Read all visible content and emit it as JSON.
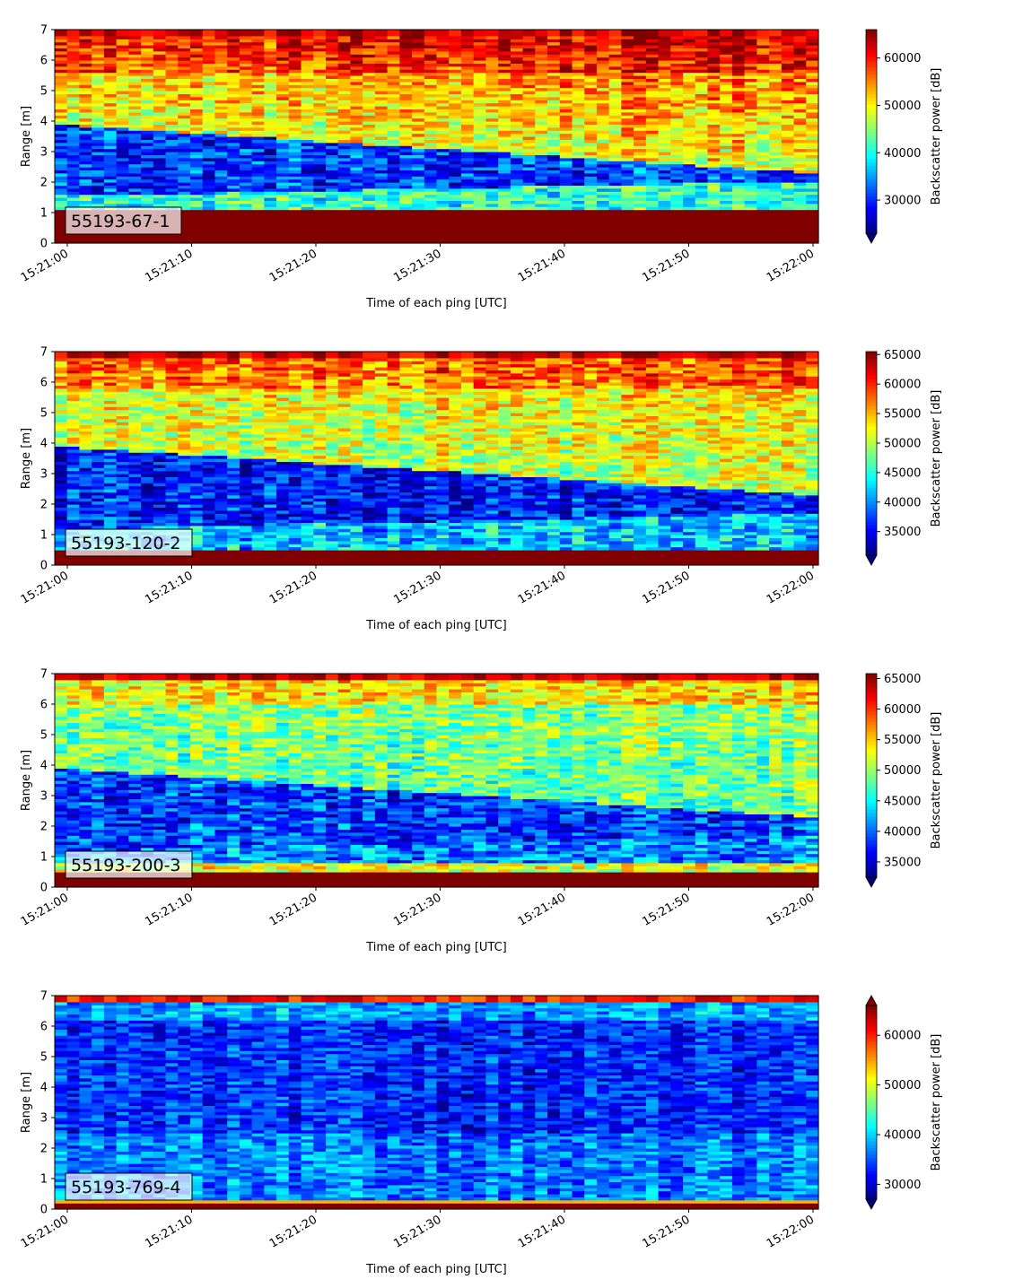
{
  "chart_data": [
    {
      "type": "heatmap",
      "label": "55193-67-1",
      "xlabel": "Time of each ping [UTC]",
      "ylabel": "Range [m]",
      "colorbar_label": "Backscatter power [dB]",
      "colormap": "jet",
      "x_range": [
        "15:21:00",
        "15:22:00"
      ],
      "x_ticks": [
        "15:21:00",
        "15:21:10",
        "15:21:20",
        "15:21:30",
        "15:21:40",
        "15:21:50",
        "15:22:00"
      ],
      "ylim": [
        0,
        7
      ],
      "y_ticks": [
        0,
        1,
        2,
        3,
        4,
        5,
        6,
        7
      ],
      "color_range": [
        23000,
        66000
      ],
      "colorbar_ticks": [
        30000,
        40000,
        50000,
        60000
      ],
      "colorbar_extend": "min"
    },
    {
      "type": "heatmap",
      "label": "55193-120-2",
      "xlabel": "Time of each ping [UTC]",
      "ylabel": "Range [m]",
      "colorbar_label": "Backscatter power [dB]",
      "colormap": "jet",
      "x_range": [
        "15:21:00",
        "15:22:00"
      ],
      "x_ticks": [
        "15:21:00",
        "15:21:10",
        "15:21:20",
        "15:21:30",
        "15:21:40",
        "15:21:50",
        "15:22:00"
      ],
      "ylim": [
        0,
        7
      ],
      "y_ticks": [
        0,
        1,
        2,
        3,
        4,
        5,
        6,
        7
      ],
      "color_range": [
        31000,
        65500
      ],
      "colorbar_ticks": [
        35000,
        40000,
        45000,
        50000,
        55000,
        60000,
        65000
      ],
      "colorbar_extend": "min"
    },
    {
      "type": "heatmap",
      "label": "55193-200-3",
      "xlabel": "Time of each ping [UTC]",
      "ylabel": "Range [m]",
      "colorbar_label": "Backscatter power [dB]",
      "colormap": "jet",
      "x_range": [
        "15:21:00",
        "15:22:00"
      ],
      "x_ticks": [
        "15:21:00",
        "15:21:10",
        "15:21:20",
        "15:21:30",
        "15:21:40",
        "15:21:50",
        "15:22:00"
      ],
      "ylim": [
        0,
        7
      ],
      "y_ticks": [
        0,
        1,
        2,
        3,
        4,
        5,
        6,
        7
      ],
      "color_range": [
        32500,
        65800
      ],
      "colorbar_ticks": [
        35000,
        40000,
        45000,
        50000,
        55000,
        60000,
        65000
      ],
      "colorbar_extend": "min"
    },
    {
      "type": "heatmap",
      "label": "55193-769-4",
      "xlabel": "Time of each ping [UTC]",
      "ylabel": "Range [m]",
      "colorbar_label": "Backscatter power [dB]",
      "colormap": "jet",
      "x_range": [
        "15:21:00",
        "15:22:00"
      ],
      "x_ticks": [
        "15:21:00",
        "15:21:10",
        "15:21:20",
        "15:21:30",
        "15:21:40",
        "15:21:50",
        "15:22:00"
      ],
      "ylim": [
        0,
        7
      ],
      "y_ticks": [
        0,
        1,
        2,
        3,
        4,
        5,
        6,
        7
      ],
      "color_range": [
        27000,
        66000
      ],
      "colorbar_ticks": [
        30000,
        40000,
        50000,
        60000
      ],
      "colorbar_extend": "both"
    }
  ]
}
